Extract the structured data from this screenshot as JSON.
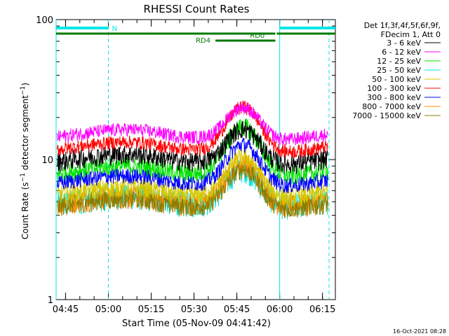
{
  "chart_data": {
    "type": "line",
    "title": "RHESSI Count Rates",
    "xlabel": "Start Time (05-Nov-09 04:41:42)",
    "ylabel_main": "Count Rate (s",
    "ylabel_exp1": "−1",
    "ylabel_mid": " detector segment",
    "ylabel_exp2": "−1",
    "ylabel_end": ")",
    "y_scale": "log",
    "ylim": [
      1,
      100
    ],
    "xlim": [
      "04:41:42",
      "06:19:30"
    ],
    "x_ticks": [
      {
        "label": "04:45",
        "t": 3.3
      },
      {
        "label": "05:00",
        "t": 18.3
      },
      {
        "label": "05:15",
        "t": 33.3
      },
      {
        "label": "05:30",
        "t": 48.3
      },
      {
        "label": "05:45",
        "t": 63.3
      },
      {
        "label": "06:00",
        "t": 78.3
      },
      {
        "label": "06:15",
        "t": 93.3
      }
    ],
    "y_ticks": [
      {
        "label": "1",
        "v": 1
      },
      {
        "label": "10",
        "v": 10
      },
      {
        "label": "100",
        "v": 100
      }
    ],
    "legend": {
      "placement": "right",
      "header_lines": [
        "Det 1f,3f,4f,5f,6f,9f,",
        "FDecim 1, Att 0"
      ]
    },
    "series": [
      {
        "name": "3 - 6 keV",
        "color": "#000000",
        "base": 10.0,
        "peak": 17.5,
        "noise": 0.1
      },
      {
        "name": "6 - 12 keV",
        "color": "#ff00ff",
        "base": 15.0,
        "peak": 25.0,
        "noise": 0.07
      },
      {
        "name": "12 - 25 keV",
        "color": "#00e000",
        "base": 8.2,
        "peak": 18.0,
        "noise": 0.1
      },
      {
        "name": "25 - 50 keV",
        "color": "#00e6e6",
        "base": 5.0,
        "peak": 9.0,
        "noise": 0.13
      },
      {
        "name": "50 - 100 keV",
        "color": "#d4c800",
        "base": 5.8,
        "peak": 11.0,
        "noise": 0.1
      },
      {
        "name": "100 - 300 keV",
        "color": "#ff0000",
        "base": 12.2,
        "peak": 25.0,
        "noise": 0.07
      },
      {
        "name": "300 - 800 keV",
        "color": "#0000ff",
        "base": 7.0,
        "peak": 13.5,
        "noise": 0.08
      },
      {
        "name": "800 - 7000 keV",
        "color": "#ff8c00",
        "base": 5.0,
        "peak": 10.0,
        "noise": 0.12
      },
      {
        "name": "7000 - 15000 keV",
        "color": "#8b7d00",
        "base": 4.8,
        "peak": 9.0,
        "noise": 0.1
      }
    ],
    "annotations": {
      "night_label": "N",
      "night_intervals": [
        [
          0,
          18.3
        ],
        [
          78.3,
          97.8
        ]
      ],
      "rd0_label": "RD0",
      "rd0_interval": [
        0,
        76.8
      ],
      "rd4_label": "RD4",
      "rd4_interval": [
        55.8,
        76.8
      ],
      "vertical_lines": [
        {
          "t": 0.0,
          "style": "solid"
        },
        {
          "t": 18.3,
          "style": "dashed"
        },
        {
          "t": 78.3,
          "style": "solid"
        },
        {
          "t": 95.6,
          "style": "dashed"
        }
      ]
    },
    "footer": "16-Oct-2021 08:28"
  }
}
